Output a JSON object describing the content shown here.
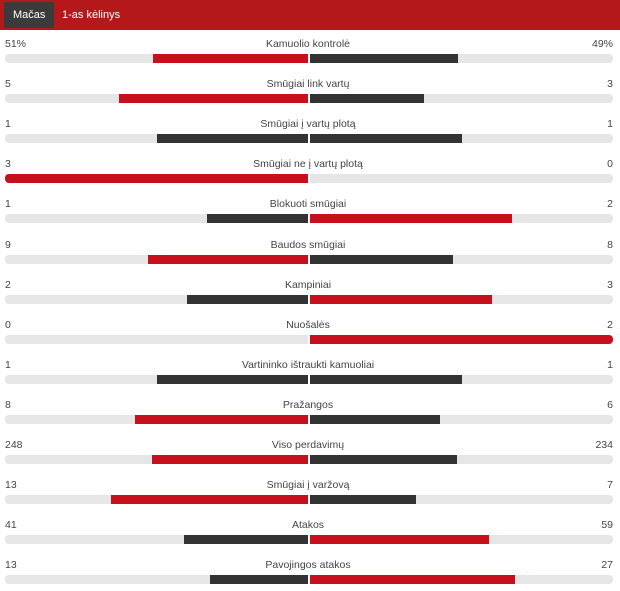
{
  "tabs": [
    {
      "label": "Mačas",
      "active": true
    },
    {
      "label": "1-as kėlinys",
      "active": false
    }
  ],
  "colors": {
    "header": "#b5181b",
    "higher": "#c8101c",
    "lower": "#333333",
    "track": "#e6e6e6"
  },
  "stats": [
    {
      "label": "Kamuolio kontrolė",
      "left": "51%",
      "right": "49%",
      "lv": 51,
      "rv": 49
    },
    {
      "label": "Smūgiai link vartų",
      "left": "5",
      "right": "3",
      "lv": 5,
      "rv": 3
    },
    {
      "label": "Smūgiai į vartų plotą",
      "left": "1",
      "right": "1",
      "lv": 1,
      "rv": 1
    },
    {
      "label": "Smūgiai ne į vartų plotą",
      "left": "3",
      "right": "0",
      "lv": 3,
      "rv": 0
    },
    {
      "label": "Blokuoti smūgiai",
      "left": "1",
      "right": "2",
      "lv": 1,
      "rv": 2
    },
    {
      "label": "Baudos smūgiai",
      "left": "9",
      "right": "8",
      "lv": 9,
      "rv": 8
    },
    {
      "label": "Kampiniai",
      "left": "2",
      "right": "3",
      "lv": 2,
      "rv": 3
    },
    {
      "label": "Nuošalės",
      "left": "0",
      "right": "2",
      "lv": 0,
      "rv": 2
    },
    {
      "label": "Vartininko ištraukti kamuoliai",
      "left": "1",
      "right": "1",
      "lv": 1,
      "rv": 1
    },
    {
      "label": "Pražangos",
      "left": "8",
      "right": "6",
      "lv": 8,
      "rv": 6
    },
    {
      "label": "Viso perdavimų",
      "left": "248",
      "right": "234",
      "lv": 248,
      "rv": 234
    },
    {
      "label": "Smūgiai į varžovą",
      "left": "13",
      "right": "7",
      "lv": 13,
      "rv": 7
    },
    {
      "label": "Atakos",
      "left": "41",
      "right": "59",
      "lv": 41,
      "rv": 59
    },
    {
      "label": "Pavojingos atakos",
      "left": "13",
      "right": "27",
      "lv": 13,
      "rv": 27
    }
  ]
}
